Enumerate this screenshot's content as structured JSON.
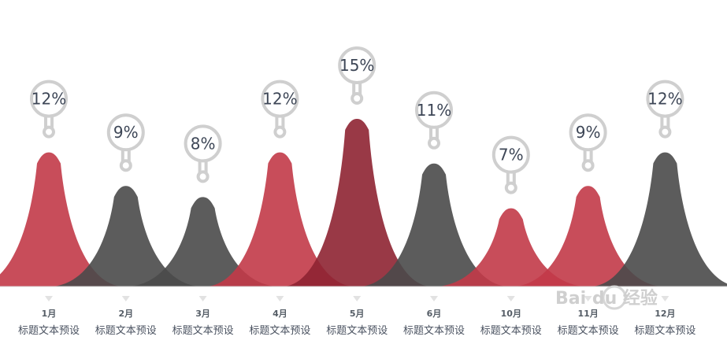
{
  "chart_data": {
    "type": "area",
    "categories": [
      "1月",
      "2月",
      "3月",
      "4月",
      "5月",
      "6月",
      "10月",
      "11月",
      "12月"
    ],
    "values": [
      12,
      9,
      8,
      12,
      15,
      11,
      7,
      9,
      12
    ],
    "value_labels": [
      "12%",
      "9%",
      "8%",
      "12%",
      "15%",
      "11%",
      "7%",
      "9%",
      "12%"
    ],
    "captions": [
      "标题文本预设",
      "标题文本预设",
      "标题文本预设",
      "标题文本预设",
      "标题文本预设",
      "标题文本预设",
      "标题文本预设",
      "标题文本预设",
      "标题文本预设"
    ],
    "colors": [
      "#c23a48",
      "#4a4a4a",
      "#4a4a4a",
      "#c23a48",
      "#8e2432",
      "#4a4a4a",
      "#c23a48",
      "#c23a48",
      "#4a4a4a"
    ],
    "title": "",
    "xlabel": "",
    "ylabel": "",
    "grid": false,
    "legend": "none"
  },
  "watermark": {
    "text": "Bai du 经验"
  }
}
